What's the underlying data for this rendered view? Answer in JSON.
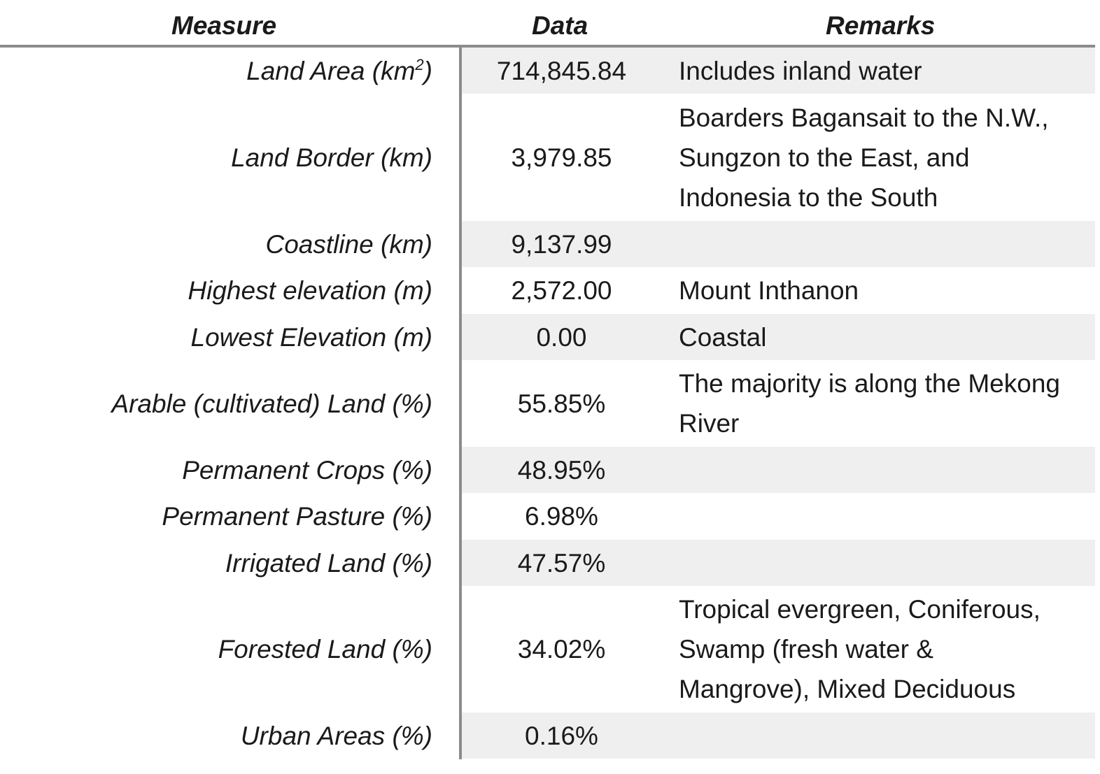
{
  "headers": {
    "measure": "Measure",
    "data": "Data",
    "remarks": "Remarks"
  },
  "rows": [
    {
      "measure": "Land Area (km",
      "measure_sup": "2",
      "measure_suffix": ")",
      "data": "714,845.84",
      "remarks": "Includes inland water"
    },
    {
      "measure": "Land Border (km)",
      "data": "3,979.85",
      "remarks": "Boarders Bagansait to the N.W.,\nSungzon to the East, and\nIndonesia to the South"
    },
    {
      "measure": "Coastline (km)",
      "data": "9,137.99",
      "remarks": ""
    },
    {
      "measure": "Highest elevation (m)",
      "data": "2,572.00",
      "remarks": "Mount Inthanon"
    },
    {
      "measure": "Lowest Elevation (m)",
      "data": "0.00",
      "remarks": "Coastal"
    },
    {
      "measure": "Arable (cultivated) Land (%)",
      "data": "55.85%",
      "remarks": "The majority is along the Mekong\nRiver"
    },
    {
      "measure": "Permanent Crops (%)",
      "data": "48.95%",
      "remarks": ""
    },
    {
      "measure": "Permanent Pasture (%)",
      "data": "6.98%",
      "remarks": ""
    },
    {
      "measure": "Irrigated Land (%)",
      "data": "47.57%",
      "remarks": ""
    },
    {
      "measure": "Forested Land (%)",
      "data": "34.02%",
      "remarks": "Tropical evergreen, Coniferous,\nSwamp (fresh water &\nMangrove), Mixed Deciduous"
    },
    {
      "measure": "Urban Areas (%)",
      "data": "0.16%",
      "remarks": ""
    }
  ]
}
